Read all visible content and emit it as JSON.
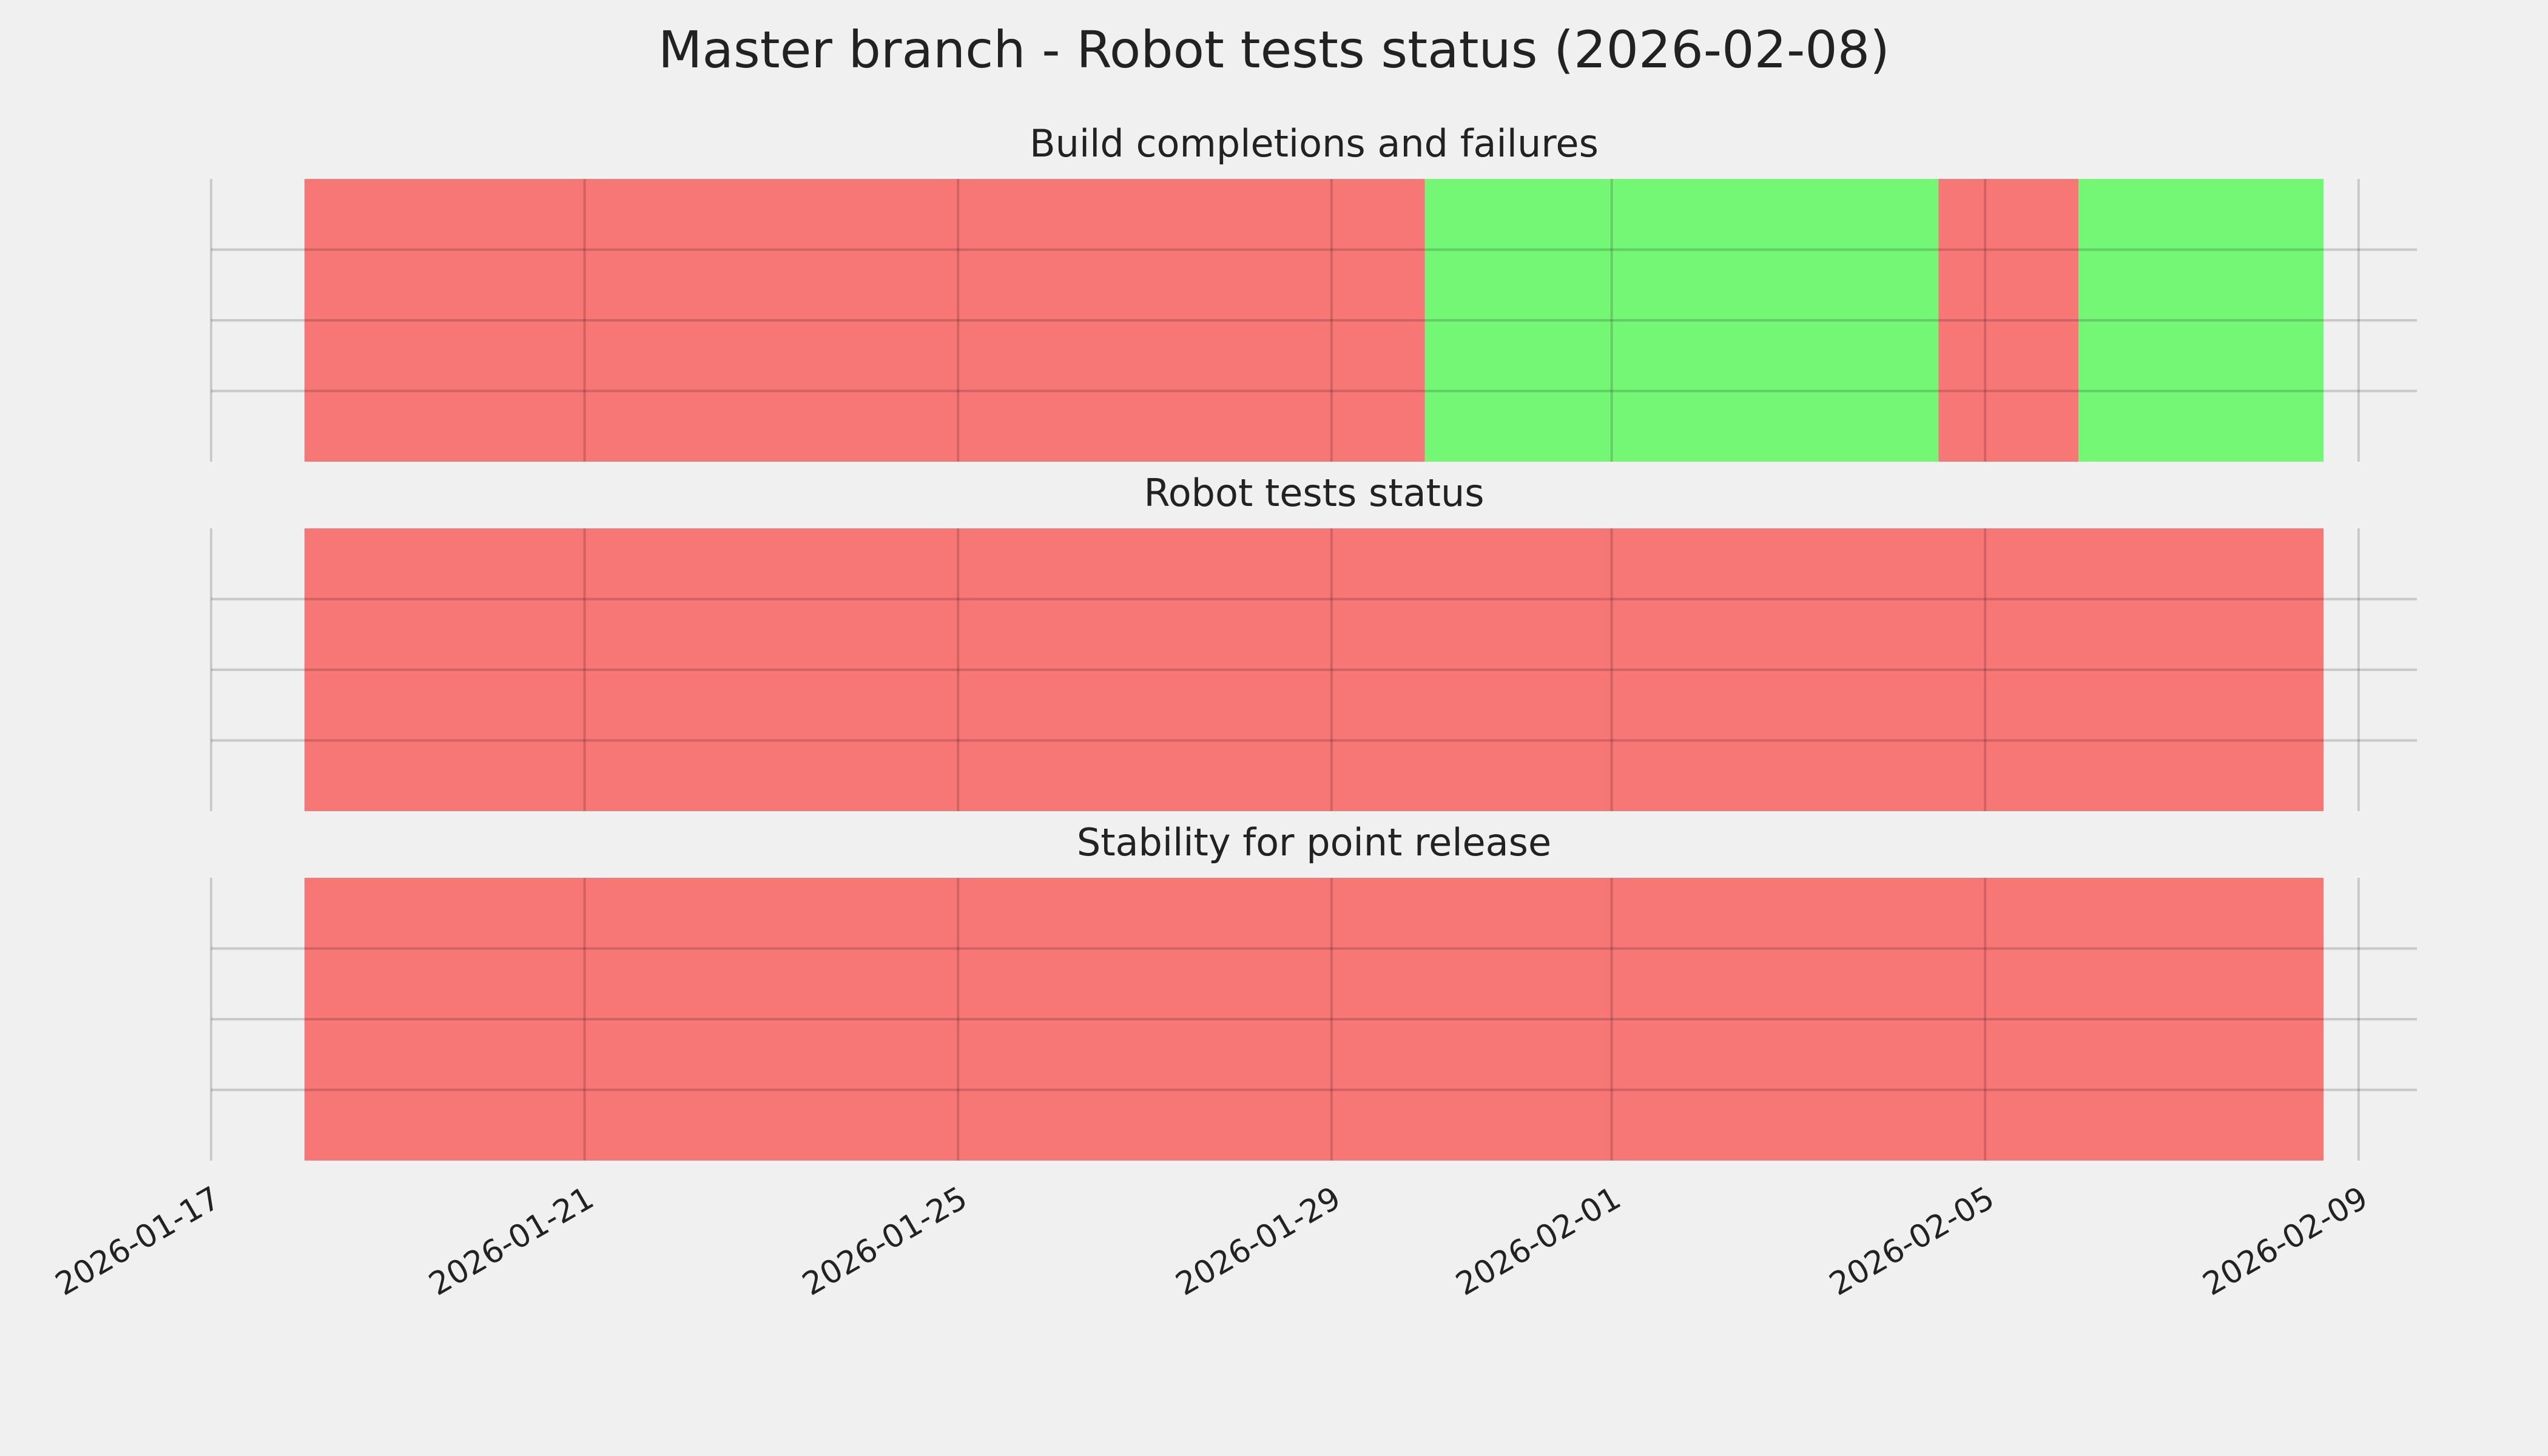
{
  "title": "Master branch - Robot tests status (2026-02-08)",
  "chart_data": [
    {
      "type": "timeline",
      "title": "Build completions and failures",
      "segments": [
        {
          "start": "2026-01-18",
          "end": "2026-01-30",
          "color": "#f77676"
        },
        {
          "start": "2026-01-30",
          "end": "2026-02-04T12:00",
          "color": "#74f774"
        },
        {
          "start": "2026-02-04T12:00",
          "end": "2026-02-06",
          "color": "#f77676"
        },
        {
          "start": "2026-02-06",
          "end": "2026-02-08T15:00",
          "color": "#74f774"
        }
      ],
      "xlim": [
        "2026-01-17",
        "2026-02-09T15:00"
      ],
      "xticks": [
        "2026-01-17",
        "2026-01-21",
        "2026-01-25",
        "2026-01-29",
        "2026-02-01",
        "2026-02-05",
        "2026-02-09"
      ],
      "ylim": [
        0,
        1
      ],
      "yticks": [
        0.25,
        0.5,
        0.75
      ],
      "grid": true
    },
    {
      "type": "timeline",
      "title": "Robot tests status",
      "segments": [
        {
          "start": "2026-01-18",
          "end": "2026-02-08T15:00",
          "color": "#f77676"
        }
      ],
      "xlim": [
        "2026-01-17",
        "2026-02-09T15:00"
      ],
      "xticks": [
        "2026-01-17",
        "2026-01-21",
        "2026-01-25",
        "2026-01-29",
        "2026-02-01",
        "2026-02-05",
        "2026-02-09"
      ],
      "ylim": [
        0,
        1
      ],
      "yticks": [
        0.25,
        0.5,
        0.75
      ],
      "grid": true
    },
    {
      "type": "timeline",
      "title": "Stability for point release",
      "segments": [
        {
          "start": "2026-01-18",
          "end": "2026-02-08T15:00",
          "color": "#f77676"
        }
      ],
      "xlim": [
        "2026-01-17",
        "2026-02-09T15:00"
      ],
      "xticks": [
        "2026-01-17",
        "2026-01-21",
        "2026-01-25",
        "2026-01-29",
        "2026-02-01",
        "2026-02-05",
        "2026-02-09"
      ],
      "ylim": [
        0,
        1
      ],
      "yticks": [
        0.25,
        0.5,
        0.75
      ],
      "grid": true,
      "show_xtick_labels": true
    }
  ]
}
